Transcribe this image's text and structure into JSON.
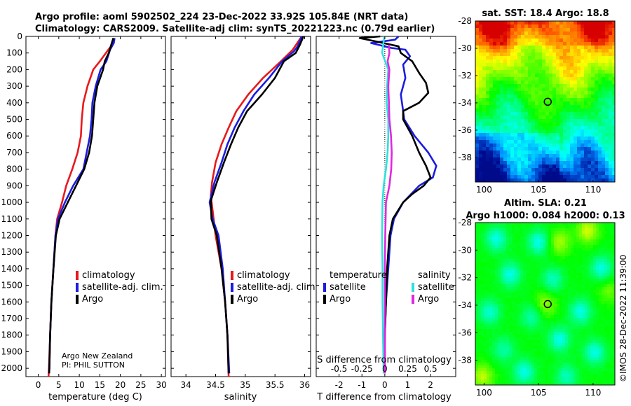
{
  "title_line1": "Argo profile: aoml 5902502_224 23-Dec-2022 33.92S 105.84E (NRT data)",
  "title_line2": "Climatology: CARS2009. Satellite-adj clim: synTS_20221223.nc (0.79d earlier)",
  "colors": {
    "climatology": "#e8191c",
    "satellite": "#1c1ce0",
    "argo": "#000000",
    "sat_sal": "#2fe0e0",
    "argo_sal": "#e028e0"
  },
  "chart_data": [
    {
      "type": "line",
      "xlabel": "temperature (deg C)",
      "ylabel": "",
      "xlim": [
        -3,
        31
      ],
      "xticks": [
        0,
        5,
        10,
        15,
        20,
        25,
        30
      ],
      "ylim": [
        2050,
        0
      ],
      "yticks": [
        0,
        100,
        200,
        300,
        400,
        500,
        600,
        700,
        800,
        900,
        1000,
        1100,
        1200,
        1300,
        1400,
        1500,
        1600,
        1700,
        1800,
        1900,
        2000
      ],
      "legend": [
        "climatology",
        "satellite-adj. clim.",
        "Argo"
      ],
      "legend_position": "lower-right",
      "annotation": [
        "Argo New Zealand",
        "PI: PHIL SUTTON"
      ],
      "series": [
        {
          "name": "climatology",
          "color": "#e8191c",
          "points": [
            [
              18.6,
              10
            ],
            [
              18,
              50
            ],
            [
              16.5,
              100
            ],
            [
              15,
              150
            ],
            [
              13.4,
              200
            ],
            [
              12,
              300
            ],
            [
              11,
              400
            ],
            [
              10.6,
              500
            ],
            [
              10.4,
              600
            ],
            [
              9.6,
              700
            ],
            [
              8.3,
              800
            ],
            [
              6.8,
              900
            ],
            [
              5.8,
              1000
            ],
            [
              4.6,
              1100
            ],
            [
              4.2,
              1200
            ],
            [
              3.7,
              1400
            ],
            [
              3.2,
              1600
            ],
            [
              2.9,
              1800
            ],
            [
              2.6,
              2000
            ],
            [
              2.5,
              2050
            ]
          ]
        },
        {
          "name": "satellite-adj. clim.",
          "color": "#1c1ce0",
          "points": [
            [
              18.6,
              10
            ],
            [
              18.4,
              40
            ],
            [
              17.5,
              80
            ],
            [
              16.6,
              150
            ],
            [
              15.2,
              200
            ],
            [
              14,
              300
            ],
            [
              13.2,
              400
            ],
            [
              13,
              500
            ],
            [
              12.6,
              600
            ],
            [
              11.8,
              700
            ],
            [
              11,
              800
            ],
            [
              8.5,
              900
            ],
            [
              6.5,
              1000
            ],
            [
              4.8,
              1100
            ],
            [
              4.2,
              1200
            ],
            [
              3.7,
              1400
            ],
            [
              3.2,
              1600
            ],
            [
              2.9,
              1800
            ],
            [
              2.7,
              2000
            ],
            [
              2.65,
              2030
            ]
          ]
        },
        {
          "name": "Argo",
          "color": "#000000",
          "points": [
            [
              18.3,
              10
            ],
            [
              17.8,
              50
            ],
            [
              17.2,
              100
            ],
            [
              16.2,
              150
            ],
            [
              15.8,
              200
            ],
            [
              14.4,
              300
            ],
            [
              13.7,
              400
            ],
            [
              13.4,
              500
            ],
            [
              13.1,
              600
            ],
            [
              12.4,
              700
            ],
            [
              11.2,
              800
            ],
            [
              9.2,
              900
            ],
            [
              7.2,
              1000
            ],
            [
              5.2,
              1100
            ],
            [
              4.3,
              1200
            ],
            [
              3.7,
              1400
            ],
            [
              3.2,
              1600
            ],
            [
              2.9,
              1800
            ],
            [
              2.7,
              2000
            ],
            [
              2.65,
              2030
            ]
          ]
        }
      ]
    },
    {
      "type": "line",
      "xlabel": "salinity",
      "xlim": [
        33.75,
        36.1
      ],
      "xticks": [
        34,
        34.5,
        35,
        35.5,
        36
      ],
      "xticklabels": [
        "34",
        "34.5",
        "35",
        "35.5",
        "36"
      ],
      "ylim": [
        2050,
        0
      ],
      "legend": [
        "climatology",
        "satellite-adj. clim.",
        "Argo"
      ],
      "legend_position": "lower-right",
      "series": [
        {
          "name": "climatology",
          "color": "#e8191c",
          "points": [
            [
              35.95,
              0
            ],
            [
              35.8,
              80
            ],
            [
              35.6,
              150
            ],
            [
              35.3,
              250
            ],
            [
              35.05,
              350
            ],
            [
              34.85,
              450
            ],
            [
              34.72,
              550
            ],
            [
              34.6,
              650
            ],
            [
              34.5,
              760
            ],
            [
              34.44,
              880
            ],
            [
              34.42,
              960
            ],
            [
              34.45,
              1050
            ],
            [
              34.5,
              1200
            ],
            [
              34.6,
              1400
            ],
            [
              34.66,
              1600
            ],
            [
              34.7,
              1800
            ],
            [
              34.72,
              2050
            ]
          ]
        },
        {
          "name": "satellite-adj. clim.",
          "color": "#1c1ce0",
          "points": [
            [
              35.95,
              0
            ],
            [
              35.88,
              60
            ],
            [
              35.82,
              90
            ],
            [
              35.62,
              150
            ],
            [
              35.4,
              250
            ],
            [
              35.15,
              350
            ],
            [
              34.97,
              450
            ],
            [
              34.82,
              550
            ],
            [
              34.7,
              650
            ],
            [
              34.6,
              760
            ],
            [
              34.48,
              880
            ],
            [
              34.4,
              1000
            ],
            [
              34.45,
              1100
            ],
            [
              34.55,
              1200
            ],
            [
              34.62,
              1400
            ],
            [
              34.66,
              1600
            ],
            [
              34.7,
              1800
            ],
            [
              34.73,
              2030
            ]
          ]
        },
        {
          "name": "Argo",
          "color": "#000000",
          "points": [
            [
              35.98,
              0
            ],
            [
              35.92,
              50
            ],
            [
              35.85,
              100
            ],
            [
              35.65,
              150
            ],
            [
              35.5,
              250
            ],
            [
              35.28,
              350
            ],
            [
              35.03,
              450
            ],
            [
              34.88,
              550
            ],
            [
              34.76,
              650
            ],
            [
              34.64,
              760
            ],
            [
              34.52,
              880
            ],
            [
              34.42,
              990
            ],
            [
              34.43,
              1100
            ],
            [
              34.52,
              1200
            ],
            [
              34.6,
              1400
            ],
            [
              34.66,
              1600
            ],
            [
              34.7,
              1800
            ],
            [
              34.72,
              2030
            ]
          ]
        }
      ]
    },
    {
      "type": "line",
      "xlabel": "T difference from climatology",
      "xlabel_top": "S difference from climatology",
      "xlim": [
        -3,
        3.1
      ],
      "xticks": [
        -2,
        -1,
        0,
        1,
        2
      ],
      "xticks_top": [
        -0.5,
        -0.25,
        0,
        0.25,
        0.5
      ],
      "xticklabels_top": [
        "-0.5",
        "-0.25",
        "0",
        "0.25",
        "0.5"
      ],
      "ylim": [
        2050,
        0
      ],
      "legend_headers": [
        "temperature",
        "salinity"
      ],
      "legend": [
        "satellite",
        "Argo"
      ],
      "legend_position": "lower",
      "series": [
        {
          "name": "temperature satellite",
          "color": "#1c1ce0",
          "points": [
            [
              0.6,
              0
            ],
            [
              0.45,
              20
            ],
            [
              -0.6,
              40
            ],
            [
              0.3,
              70
            ],
            [
              0.9,
              80
            ],
            [
              1.1,
              120
            ],
            [
              0.8,
              170
            ],
            [
              0.9,
              250
            ],
            [
              0.7,
              350
            ],
            [
              0.8,
              450
            ],
            [
              0.85,
              500
            ],
            [
              1.3,
              600
            ],
            [
              1.9,
              700
            ],
            [
              2.25,
              780
            ],
            [
              2.1,
              850
            ],
            [
              1.5,
              900
            ],
            [
              0.8,
              1000
            ],
            [
              0.4,
              1100
            ],
            [
              0.25,
              1200
            ],
            [
              0.15,
              1400
            ],
            [
              0.05,
              1600
            ],
            [
              0,
              1800
            ],
            [
              0,
              2030
            ]
          ]
        },
        {
          "name": "temperature Argo",
          "color": "#000000",
          "points": [
            [
              -0.2,
              0
            ],
            [
              -1.1,
              10
            ],
            [
              -0.4,
              30
            ],
            [
              0.6,
              60
            ],
            [
              0.7,
              100
            ],
            [
              1.2,
              150
            ],
            [
              1.5,
              220
            ],
            [
              1.8,
              280
            ],
            [
              1.9,
              340
            ],
            [
              1.5,
              400
            ],
            [
              0.8,
              450
            ],
            [
              0.8,
              500
            ],
            [
              1.2,
              600
            ],
            [
              1.5,
              700
            ],
            [
              1.8,
              780
            ],
            [
              2.0,
              850
            ],
            [
              1.7,
              900
            ],
            [
              1.2,
              950
            ],
            [
              0.8,
              1000
            ],
            [
              0.35,
              1100
            ],
            [
              0.2,
              1200
            ],
            [
              0.1,
              1400
            ],
            [
              0.05,
              1600
            ],
            [
              0,
              1800
            ],
            [
              -0.02,
              2030
            ]
          ]
        },
        {
          "name": "salinity satellite",
          "color": "#2fe0e0",
          "points": [
            [
              -0.02,
              0
            ],
            [
              -0.12,
              100
            ],
            [
              0.15,
              200
            ],
            [
              0.1,
              300
            ],
            [
              0.08,
              400
            ],
            [
              0.15,
              500
            ],
            [
              0.15,
              600
            ],
            [
              0.12,
              700
            ],
            [
              0.05,
              800
            ],
            [
              -0.05,
              900
            ],
            [
              -0.1,
              1000
            ],
            [
              -0.12,
              1200
            ],
            [
              -0.1,
              1400
            ],
            [
              -0.1,
              1600
            ],
            [
              -0.08,
              1800
            ],
            [
              -0.05,
              2030
            ]
          ]
        },
        {
          "name": "salinity Argo",
          "color": "#e028e0",
          "points": [
            [
              0.18,
              50
            ],
            [
              0.2,
              100
            ],
            [
              0.12,
              150
            ],
            [
              0.2,
              200
            ],
            [
              0.15,
              300
            ],
            [
              0.18,
              400
            ],
            [
              0.2,
              500
            ],
            [
              0.27,
              600
            ],
            [
              0.3,
              700
            ],
            [
              0.28,
              800
            ],
            [
              0.2,
              900
            ],
            [
              0.05,
              1000
            ],
            [
              0.02,
              1200
            ],
            [
              0,
              1400
            ],
            [
              0,
              1600
            ],
            [
              0,
              1800
            ],
            [
              0,
              2030
            ]
          ]
        }
      ]
    },
    {
      "type": "heatmap",
      "title": "sat. SST: 18.4 Argo: 18.8",
      "xlim": [
        99.2,
        112
      ],
      "ylim": [
        -39.8,
        -28
      ],
      "xticks": [
        100,
        105,
        110
      ],
      "yticks": [
        -38,
        -36,
        -34,
        -32,
        -30,
        -28
      ],
      "marker": [
        105.84,
        -33.92
      ]
    },
    {
      "type": "heatmap",
      "title_line1": "Altim. SLA: 0.21",
      "title_line2": "Argo h1000: 0.084 h2000: 0.13",
      "xlim": [
        99.2,
        112
      ],
      "ylim": [
        -39.8,
        -28
      ],
      "xticks": [
        100,
        105,
        110
      ],
      "yticks": [
        -38,
        -36,
        -34,
        -32,
        -30,
        -28
      ],
      "marker": [
        105.84,
        -33.92
      ],
      "side_text": "©IMOS 28-Dec-2022 11:39:00"
    }
  ]
}
